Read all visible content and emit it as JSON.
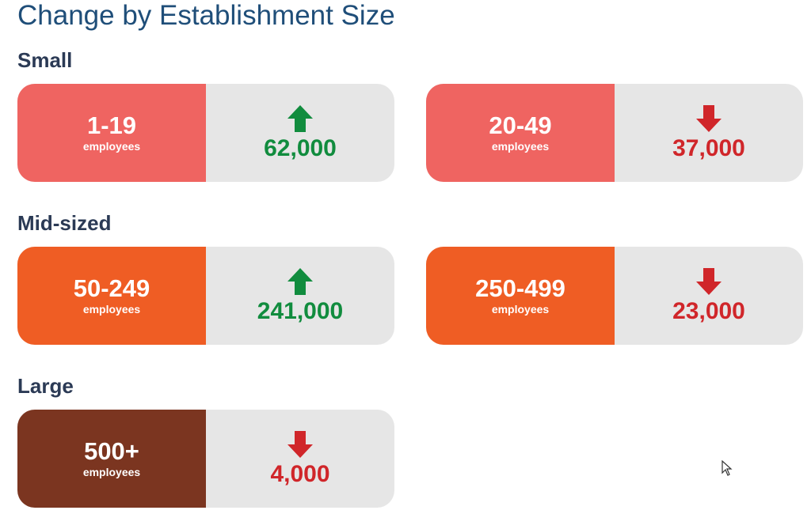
{
  "title": "Change by Establishment Size",
  "colors": {
    "small": "#ef6461",
    "mid": "#ef5d24",
    "large": "#7b3520",
    "up": "#118c3e",
    "down": "#d0262a",
    "panel": "#e6e6e6"
  },
  "sections": [
    {
      "label": "Small",
      "cards": [
        {
          "range": "1-19",
          "unit": "employees",
          "direction": "up",
          "icon": "arrow-up-icon",
          "value": "62,000"
        },
        {
          "range": "20-49",
          "unit": "employees",
          "direction": "down",
          "icon": "arrow-down-icon",
          "value": "37,000"
        }
      ]
    },
    {
      "label": "Mid-sized",
      "cards": [
        {
          "range": "50-249",
          "unit": "employees",
          "direction": "up",
          "icon": "arrow-up-icon",
          "value": "241,000"
        },
        {
          "range": "250-499",
          "unit": "employees",
          "direction": "down",
          "icon": "arrow-down-icon",
          "value": "23,000"
        }
      ]
    },
    {
      "label": "Large",
      "cards": [
        {
          "range": "500+",
          "unit": "employees",
          "direction": "down",
          "icon": "arrow-down-icon",
          "value": "4,000"
        }
      ]
    }
  ]
}
